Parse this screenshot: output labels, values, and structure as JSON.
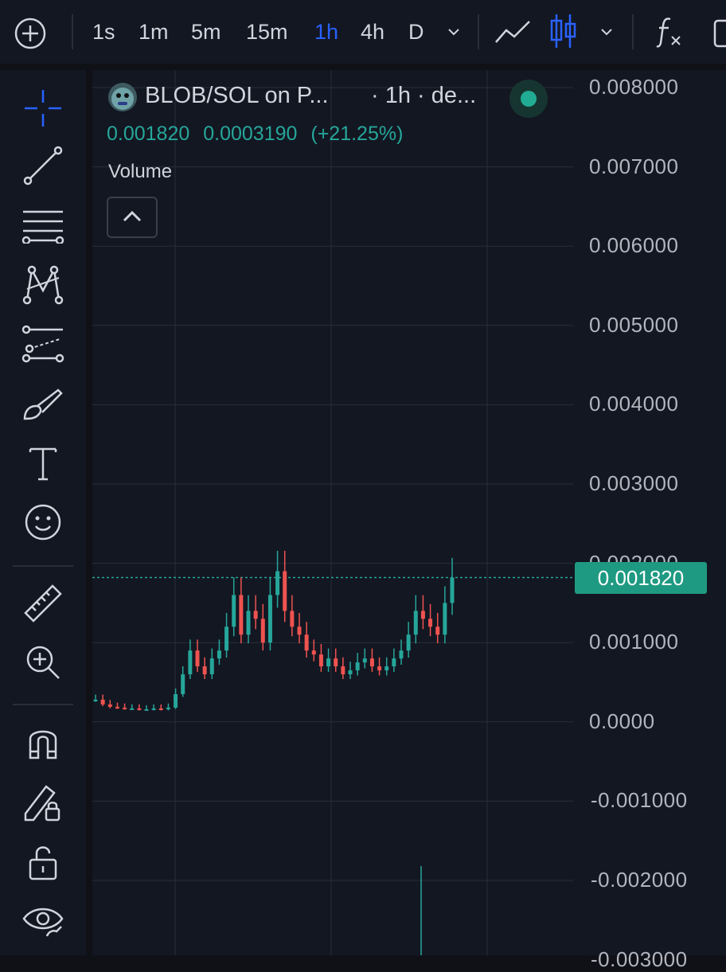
{
  "toolbar": {
    "timeframes": [
      "1s",
      "1m",
      "5m",
      "15m",
      "1h",
      "4h",
      "D"
    ],
    "active_timeframe": "1h"
  },
  "sidebar": {
    "tools": [
      "crosshair-icon",
      "trend-line-icon",
      "fib-retracement-icon",
      "pattern-icon",
      "prediction-icon",
      "brush-icon",
      "text-icon",
      "emoji-icon",
      "ruler-icon",
      "zoom-in-icon",
      "magnet-icon",
      "lock-drawing-icon",
      "unlock-icon",
      "eye-icon"
    ]
  },
  "legend": {
    "symbol": "BLOB/SOL on P...",
    "interval": "· 1h · de...",
    "price": "0.001820",
    "change": "0.0003190",
    "change_pct": "(+21.25%)",
    "volume_label": "Volume"
  },
  "price_axis": {
    "labels": [
      "0.008000",
      "0.007000",
      "0.006000",
      "0.005000",
      "0.004000",
      "0.003000",
      "0.002000",
      "0.001000",
      "0.0000",
      "-0.001000",
      "-0.002000",
      "-0.003000"
    ],
    "current_price": "0.001820"
  },
  "colors": {
    "up": "#26a69a",
    "down": "#ef5350",
    "accent": "#2962ff",
    "price_tag": "#1f9a82"
  },
  "chart_data": {
    "type": "candlestick",
    "yrange": [
      -0.003,
      0.008
    ],
    "last_price": 0.00182,
    "series": [
      {
        "name": "close",
        "values": [
          0.00028,
          0.00022,
          0.00019,
          0.00018,
          0.00017,
          0.00017,
          0.00016,
          0.00016,
          0.00017,
          0.00016,
          0.00018,
          0.00035,
          0.0006,
          0.0009,
          0.0007,
          0.0006,
          0.0008,
          0.0009,
          0.0012,
          0.0016,
          0.0011,
          0.0014,
          0.0013,
          0.001,
          0.0016,
          0.0019,
          0.0014,
          0.0012,
          0.0011,
          0.0009,
          0.00085,
          0.0007,
          0.0008,
          0.0007,
          0.0006,
          0.00065,
          0.00075,
          0.0008,
          0.0007,
          0.00065,
          0.0007,
          0.0008,
          0.0009,
          0.0011,
          0.0014,
          0.0013,
          0.0012,
          0.0011,
          0.0015,
          0.00182
        ]
      }
    ]
  }
}
